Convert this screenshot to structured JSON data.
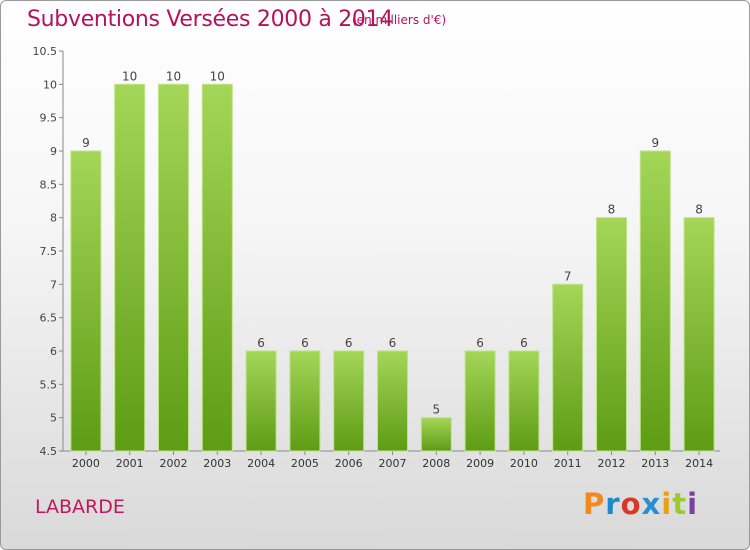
{
  "header": {
    "title": "Subventions Versées 2000 à 2014",
    "subtitle": "(en milliers d'€)"
  },
  "footer": {
    "place": "LABARDE",
    "logo": "Proxiti",
    "logo_colors": [
      "#f08a1c",
      "#1f88c7",
      "#d63a26",
      "#2a8fd1",
      "#e6a117",
      "#9acb2e",
      "#7d3f9b"
    ]
  },
  "colors": {
    "bar_top": "#a4d658",
    "bar_bottom": "#5e9c14",
    "title": "#b3135b"
  },
  "chart_data": {
    "type": "bar",
    "categories": [
      "2000",
      "2001",
      "2002",
      "2003",
      "2004",
      "2005",
      "2006",
      "2007",
      "2008",
      "2009",
      "2010",
      "2011",
      "2012",
      "2013",
      "2014"
    ],
    "values": [
      9,
      10,
      10,
      10,
      6,
      6,
      6,
      6,
      5,
      6,
      6,
      7,
      8,
      9,
      8
    ],
    "data_labels": [
      "9",
      "10",
      "10",
      "10",
      "6",
      "6",
      "6",
      "6",
      "5",
      "6",
      "6",
      "7",
      "8",
      "9",
      "8"
    ],
    "title": "Subventions Versées 2000 à 2014",
    "ylim": [
      4.5,
      10.5
    ],
    "yticks": [
      "4.5",
      "5",
      "5.5",
      "6",
      "6.5",
      "7",
      "7.5",
      "8",
      "8.5",
      "9",
      "9.5",
      "10",
      "10.5"
    ],
    "grid": false
  }
}
